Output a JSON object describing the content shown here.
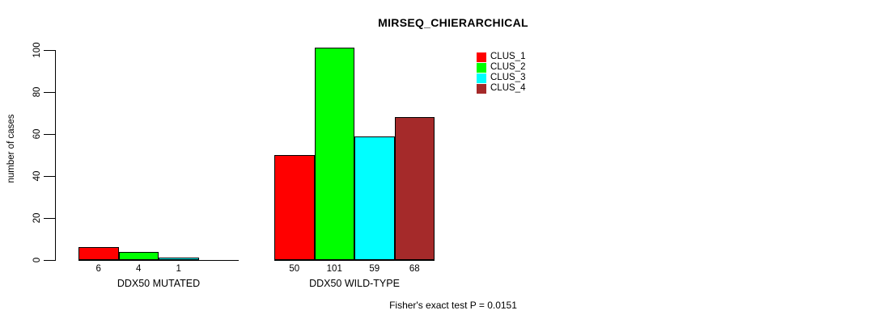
{
  "chart_data": {
    "type": "bar",
    "title": "MIRSEQ_CHIERARCHICAL",
    "ylabel": "number of cases",
    "xlabel": "",
    "ylim": [
      0,
      100
    ],
    "yticks": [
      0,
      20,
      40,
      60,
      80,
      100
    ],
    "grid": false,
    "legend_position": "top-right",
    "series": [
      {
        "name": "CLUS_1",
        "color": "#FF0000"
      },
      {
        "name": "CLUS_2",
        "color": "#00FF00"
      },
      {
        "name": "CLUS_3",
        "color": "#00FFFF"
      },
      {
        "name": "CLUS_4",
        "color": "#A52A2A"
      }
    ],
    "groups": [
      {
        "label": "DDX50 MUTATED",
        "values": [
          6,
          4,
          1,
          0
        ],
        "value_labels": [
          "6",
          "4",
          "1",
          ""
        ]
      },
      {
        "label": "DDX50 WILD-TYPE",
        "values": [
          50,
          101,
          59,
          68
        ],
        "value_labels": [
          "50",
          "101",
          "59",
          "68"
        ]
      }
    ],
    "caption": "Fisher's exact test P = 0.0151"
  }
}
